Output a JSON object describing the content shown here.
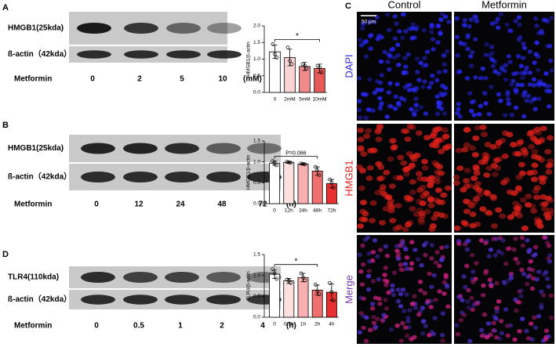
{
  "chart_data": [
    {
      "panel": "A",
      "type": "bar",
      "y_label": "HMGB1/β-actin",
      "categories": [
        "0",
        "2mM",
        "5mM",
        "10mM"
      ],
      "values": [
        1.22,
        1.05,
        0.78,
        0.72
      ],
      "errors": [
        0.2,
        0.25,
        0.12,
        0.13
      ],
      "points": [
        [
          1.45,
          1.15,
          1.05
        ],
        [
          1.35,
          0.95,
          0.85
        ],
        [
          0.85,
          0.8,
          0.72
        ],
        [
          0.8,
          0.75,
          0.6
        ]
      ],
      "colors": [
        "#ffffff",
        "#fbd5d5",
        "#f08a8a",
        "#e85a5a"
      ],
      "ylim": [
        0,
        2
      ],
      "yticks": [
        {
          "value": 0,
          "label": "0.0"
        },
        0.5,
        {
          "value": 1,
          "label": "1.0"
        },
        1.5,
        {
          "value": 2,
          "label": "2.0"
        }
      ],
      "significance": {
        "label": "*",
        "between": [
          "0",
          "10mM"
        ]
      }
    },
    {
      "panel": "B",
      "type": "bar",
      "y_label": "HMGB1/β-actin",
      "categories": [
        "0",
        "12h",
        "24h",
        "48h",
        "72h"
      ],
      "values": [
        0.97,
        0.99,
        0.95,
        0.78,
        0.48
      ],
      "errors": [
        0.05,
        0.02,
        0.02,
        0.1,
        0.1
      ],
      "points": [
        [
          1.02,
          0.98,
          0.92
        ],
        [
          1.0,
          0.99,
          0.98
        ],
        [
          0.96,
          0.95,
          0.94
        ],
        [
          0.88,
          0.8,
          0.68
        ],
        [
          0.58,
          0.5,
          0.38
        ]
      ],
      "colors": [
        "#ffffff",
        "#fde0e0",
        "#f9b0b0",
        "#f07070",
        "#e83030"
      ],
      "ylim": [
        0,
        1.5
      ],
      "yticks": [
        {
          "value": 0,
          "label": "0.0"
        },
        0.5,
        {
          "value": 1,
          "label": "1.0"
        },
        1.5
      ],
      "significance": {
        "label": "P=0.066",
        "between": [
          "0",
          "48h"
        ]
      }
    },
    {
      "panel": "D",
      "type": "bar",
      "y_label": "TLR4/β-actin",
      "categories": [
        "0",
        "0.5h",
        "1h",
        "2h",
        "4h"
      ],
      "values": [
        1.03,
        0.87,
        0.95,
        0.65,
        0.6
      ],
      "errors": [
        0.1,
        0.06,
        0.1,
        0.12,
        0.2
      ],
      "points": [
        [
          1.15,
          1.05,
          0.92
        ],
        [
          0.9,
          0.88,
          0.82
        ],
        [
          1.05,
          0.95,
          0.88
        ],
        [
          0.78,
          0.62,
          0.55
        ],
        [
          0.82,
          0.6,
          0.4
        ]
      ],
      "colors": [
        "#ffffff",
        "#fde0e0",
        "#f9b0b0",
        "#f07070",
        "#e83030"
      ],
      "ylim": [
        0,
        1.5
      ],
      "yticks": [
        {
          "value": 0,
          "label": "0.0"
        },
        0.5,
        {
          "value": 1,
          "label": "1.0"
        },
        1.5
      ],
      "significance": {
        "label": "*",
        "between": [
          "0",
          "2h"
        ]
      }
    }
  ],
  "blots": [
    {
      "panel": "A",
      "rows": [
        "HMGB1(25kda)",
        "ß-actin（42kda）"
      ],
      "treatment": "Metformin",
      "doses": [
        "0",
        "2",
        "5",
        "10"
      ],
      "unit": "(mM)"
    },
    {
      "panel": "B",
      "rows": [
        "HMGB1(25kda)",
        "ß-actin（42kda）"
      ],
      "treatment": "Metformin",
      "doses": [
        "0",
        "12",
        "24",
        "48",
        "72"
      ],
      "unit": "(h)"
    },
    {
      "panel": "D",
      "rows": [
        "TLR4(110kda)",
        "ß-actin（42kda）"
      ],
      "treatment": "Metformin",
      "doses": [
        "0",
        "0.5",
        "1",
        "2",
        "4"
      ],
      "unit": "(h)"
    }
  ],
  "microscopy": {
    "panel": "C",
    "columns": [
      "Control",
      "Metformin"
    ],
    "rows": [
      "DAPI",
      "HMGB1",
      "Merge"
    ],
    "scale": "50 μm"
  }
}
